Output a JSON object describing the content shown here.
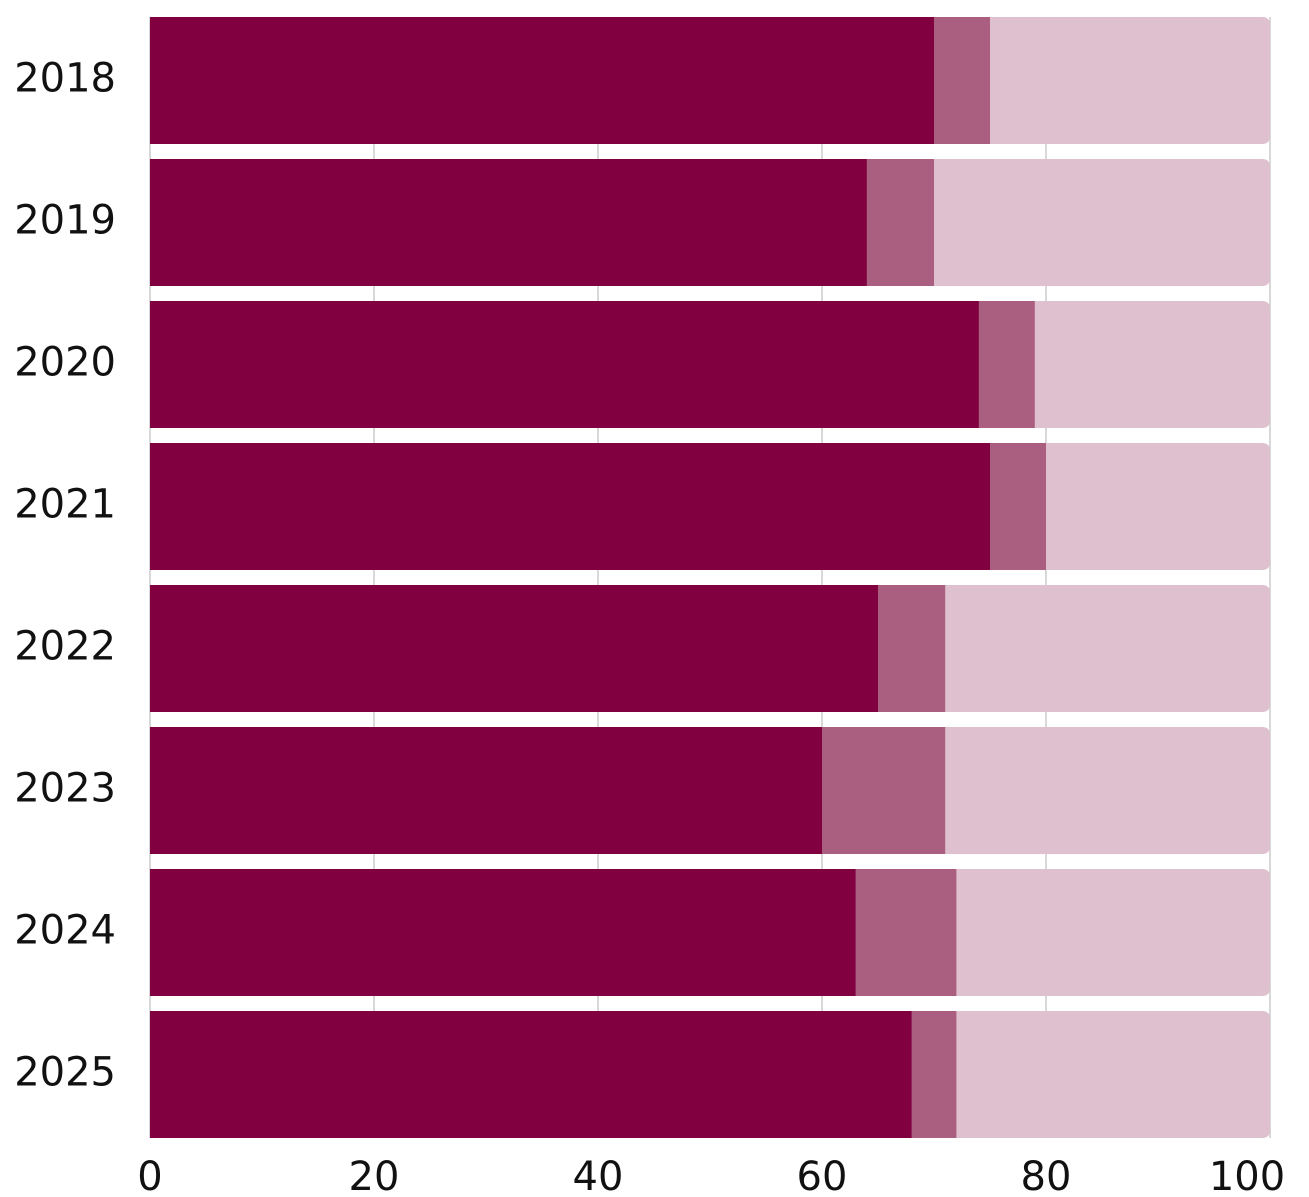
{
  "chart_data": {
    "type": "bar",
    "orientation": "horizontal",
    "stacked": true,
    "categories": [
      "2018",
      "2019",
      "2020",
      "2021",
      "2022",
      "2023",
      "2024",
      "2025"
    ],
    "series": [
      {
        "values": [
          70,
          64,
          74,
          75,
          65,
          60,
          63,
          68
        ],
        "color": "#800040"
      },
      {
        "values": [
          5,
          6,
          5,
          5,
          6,
          11,
          9,
          4
        ],
        "color": "#AB5F80"
      },
      {
        "values": [
          25,
          30,
          21,
          20,
          29,
          29,
          28,
          28
        ],
        "color": "#DFC0CE"
      }
    ],
    "xlim": [
      0,
      100
    ],
    "xticks": [
      0,
      20,
      40,
      60,
      80,
      100
    ],
    "title": "",
    "xlabel": "",
    "ylabel": "",
    "grid": "vertical",
    "legend": "none"
  },
  "colors": {
    "grid": "#cccccc",
    "text": "#111111",
    "background": "#ffffff"
  }
}
